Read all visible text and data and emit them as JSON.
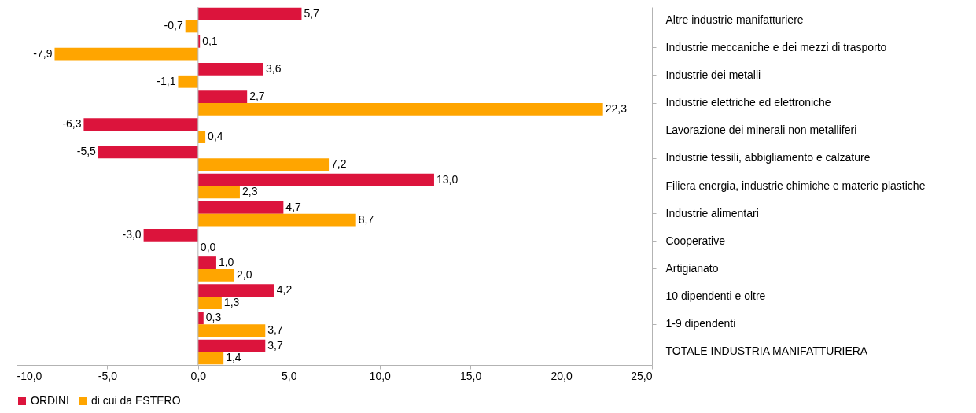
{
  "chart_data": {
    "type": "bar",
    "orientation": "horizontal",
    "categories": [
      "Altre industrie manifatturiere",
      "Industrie meccaniche e dei mezzi di trasporto",
      "Industrie dei metalli",
      "Industrie elettriche ed elettroniche",
      "Lavorazione dei minerali non metalliferi",
      "Industrie tessili, abbigliamento e calzature",
      "Filiera energia, industrie chimiche e materie plastiche",
      "Industrie alimentari",
      "Cooperative",
      "Artigianato",
      "10 dipendenti e oltre",
      "1-9 dipendenti",
      "TOTALE INDUSTRIA MANIFATTURIERA"
    ],
    "series": [
      {
        "name": "ORDINI",
        "color": "#dc143c",
        "values": [
          5.7,
          0.1,
          3.6,
          2.7,
          -6.3,
          -5.5,
          13.0,
          4.7,
          -3.0,
          1.0,
          4.2,
          0.3,
          3.7
        ],
        "value_labels": [
          "5,7",
          "0,1",
          "3,6",
          "2,7",
          "-6,3",
          "-5,5",
          "13,0",
          "4,7",
          "-3,0",
          "1,0",
          "4,2",
          "0,3",
          "3,7"
        ]
      },
      {
        "name": "di cui da ESTERO",
        "color": "#ffa500",
        "values": [
          -0.7,
          -7.9,
          -1.1,
          22.3,
          0.4,
          7.2,
          2.3,
          8.7,
          0.0,
          2.0,
          1.3,
          3.7,
          1.4
        ],
        "value_labels": [
          "-0,7",
          "-7,9",
          "-1,1",
          "22,3",
          "0,4",
          "7,2",
          "2,3",
          "8,7",
          "0,0",
          "2,0",
          "1,3",
          "3,7",
          "1,4"
        ]
      }
    ],
    "xlim": [
      -10,
      25
    ],
    "xticks": [
      {
        "value": -10,
        "label": "-10,0"
      },
      {
        "value": -5,
        "label": "-5,0"
      },
      {
        "value": 0,
        "label": "0,0"
      },
      {
        "value": 5,
        "label": "5,0"
      },
      {
        "value": 10,
        "label": "10,0"
      },
      {
        "value": 15,
        "label": "15,0"
      },
      {
        "value": 20,
        "label": "20,0"
      },
      {
        "value": 25,
        "label": "25,0"
      }
    ],
    "ref_lines": [
      {
        "axis": "x",
        "value": 0,
        "color": "#b3b3b3"
      }
    ],
    "grid": false,
    "legend": "bottom"
  }
}
